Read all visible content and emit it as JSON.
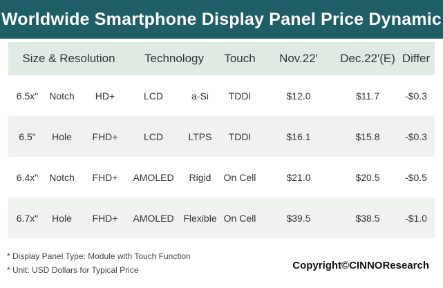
{
  "header": {
    "title": "Worldwide Smartphone Display Panel Price Dynamic"
  },
  "chart_data": {
    "type": "table",
    "columns": [
      "Size & Resolution",
      "Technology",
      "Touch",
      "Nov.22'",
      "Dec.22'(E)",
      "Differ"
    ],
    "rows": [
      {
        "size": "6.5x\"",
        "form": "Notch",
        "resolution": "HD+",
        "technology": "LCD",
        "backplane": "a-Si",
        "touch": "TDDI",
        "nov22": "$12.0",
        "dec22": "$11.7",
        "differ": "-$0.3"
      },
      {
        "size": "6.5\"",
        "form": "Hole",
        "resolution": "FHD+",
        "technology": "LCD",
        "backplane": "LTPS",
        "touch": "TDDI",
        "nov22": "$16.1",
        "dec22": "$15.8",
        "differ": "-$0.3"
      },
      {
        "size": "6.4x\"",
        "form": "Notch",
        "resolution": "FHD+",
        "technology": "AMOLED",
        "backplane": "Rigid",
        "touch": "On Cell",
        "nov22": "$21.0",
        "dec22": "$20.5",
        "differ": "-$0.5"
      },
      {
        "size": "6.7x\"",
        "form": "Hole",
        "resolution": "FHD+",
        "technology": "AMOLED",
        "backplane": "Flexible",
        "touch": "On Cell",
        "nov22": "$39.5",
        "dec22": "$38.5",
        "differ": "-$1.0"
      }
    ]
  },
  "footnotes": [
    "* Display Panel Type:  Module with Touch Function",
    "* Unit:  USD Dollars for Typical Price"
  ],
  "copyright": "Copyright©CINNOResearch",
  "colors": {
    "title_bar": "#1f5e67",
    "header_row": "#dfeae2",
    "shaded_row": "#eff2ef"
  }
}
